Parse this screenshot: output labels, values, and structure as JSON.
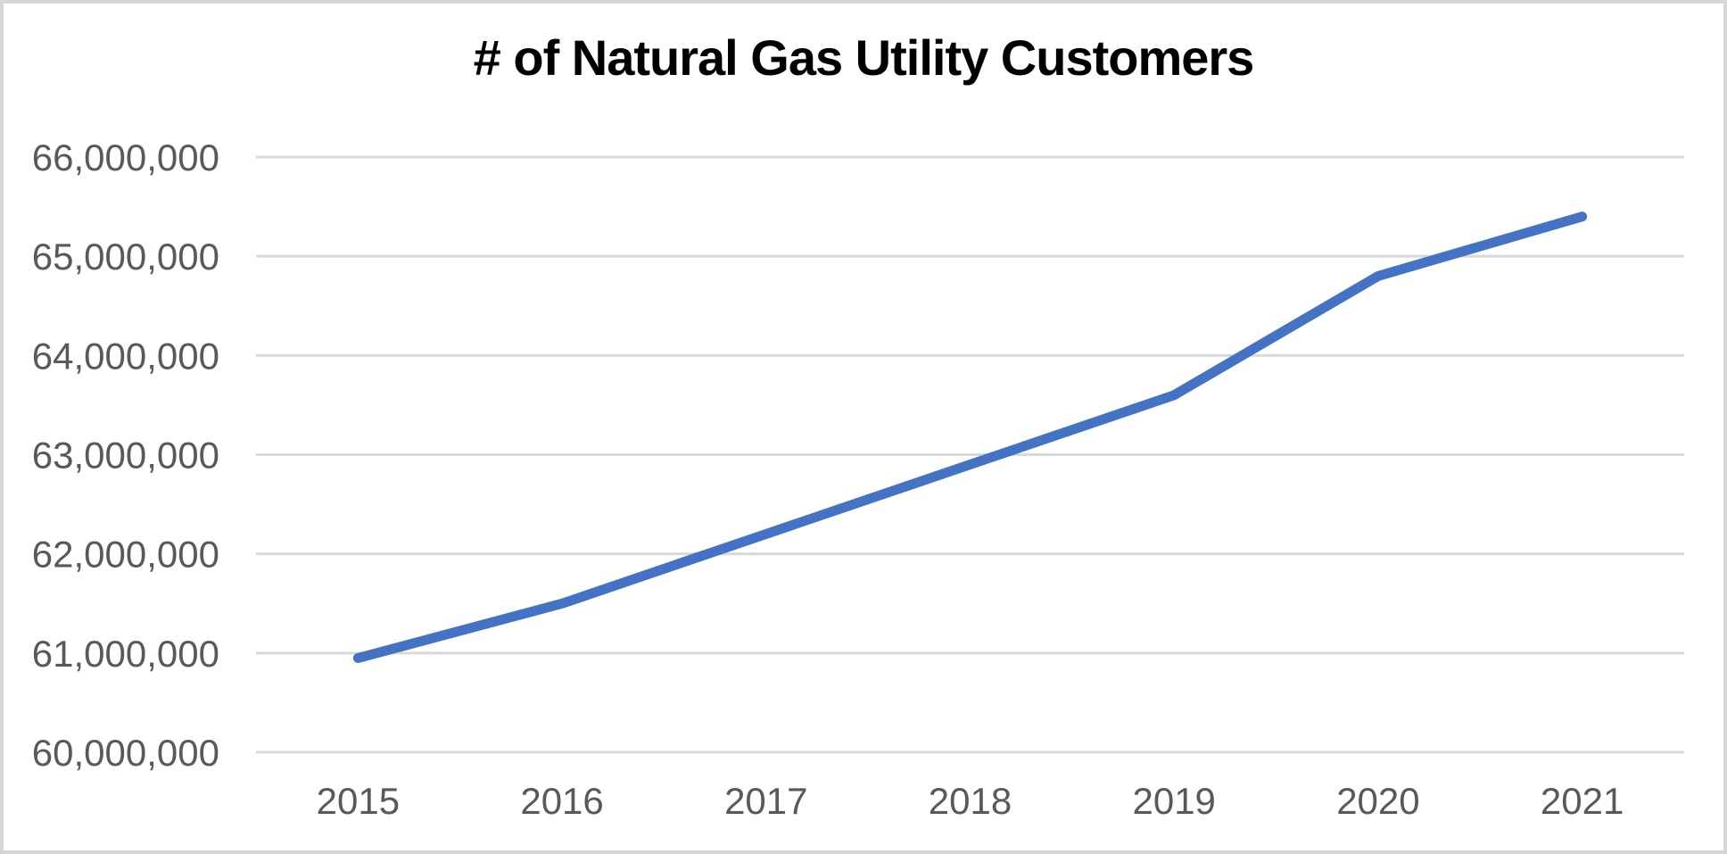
{
  "chart_data": {
    "type": "line",
    "title": "# of Natural Gas Utility Customers",
    "categories": [
      "2015",
      "2016",
      "2017",
      "2018",
      "2019",
      "2020",
      "2021"
    ],
    "series": [
      {
        "name": "# of Natural Gas Utility Customers",
        "values": [
          60950000,
          61500000,
          62200000,
          62900000,
          63600000,
          64800000,
          65400000
        ]
      }
    ],
    "xlabel": "",
    "ylabel": "",
    "ylim": [
      60000000,
      66000000
    ],
    "ytick_interval": 1000000,
    "ytick_labels": [
      "66,000,000",
      "65,000,000",
      "64,000,000",
      "63,000,000",
      "62,000,000",
      "61,000,000",
      "60,000,000"
    ],
    "grid": true,
    "legend": "none",
    "colors": {
      "line": "#4472c4",
      "gridline": "#d9d9d9",
      "axis_text": "#595959",
      "title_text": "#000000",
      "page_border": "#d6d6d6",
      "background": "#ffffff"
    }
  }
}
